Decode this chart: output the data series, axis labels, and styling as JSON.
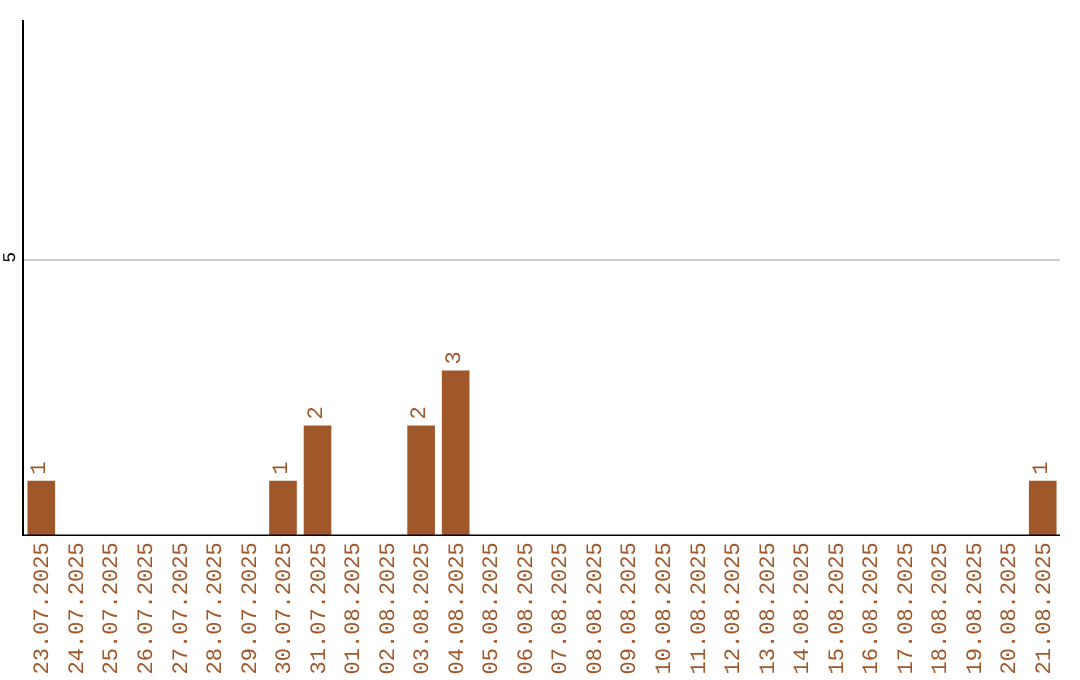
{
  "chart_data": {
    "type": "bar",
    "categories": [
      "23.07.2025",
      "24.07.2025",
      "25.07.2025",
      "26.07.2025",
      "27.07.2025",
      "28.07.2025",
      "29.07.2025",
      "30.07.2025",
      "31.07.2025",
      "01.08.2025",
      "02.08.2025",
      "03.08.2025",
      "04.08.2025",
      "05.08.2025",
      "06.08.2025",
      "07.08.2025",
      "08.08.2025",
      "09.08.2025",
      "10.08.2025",
      "11.08.2025",
      "12.08.2025",
      "13.08.2025",
      "14.08.2025",
      "15.08.2025",
      "16.08.2025",
      "17.08.2025",
      "18.08.2025",
      "19.08.2025",
      "20.08.2025",
      "21.08.2025"
    ],
    "values": [
      1,
      0,
      0,
      0,
      0,
      0,
      0,
      1,
      2,
      0,
      0,
      2,
      3,
      0,
      0,
      0,
      0,
      0,
      0,
      0,
      0,
      0,
      0,
      0,
      0,
      0,
      0,
      0,
      0,
      1
    ],
    "value_labels": [
      "1",
      null,
      null,
      null,
      null,
      null,
      null,
      "1",
      "2",
      null,
      null,
      "2",
      "3",
      null,
      null,
      null,
      null,
      null,
      null,
      null,
      null,
      null,
      null,
      null,
      null,
      null,
      null,
      null,
      null,
      "1"
    ],
    "color": "#a0572a",
    "ylim": [
      0,
      9.35
    ],
    "yticks": [
      5
    ],
    "grid": "y"
  }
}
